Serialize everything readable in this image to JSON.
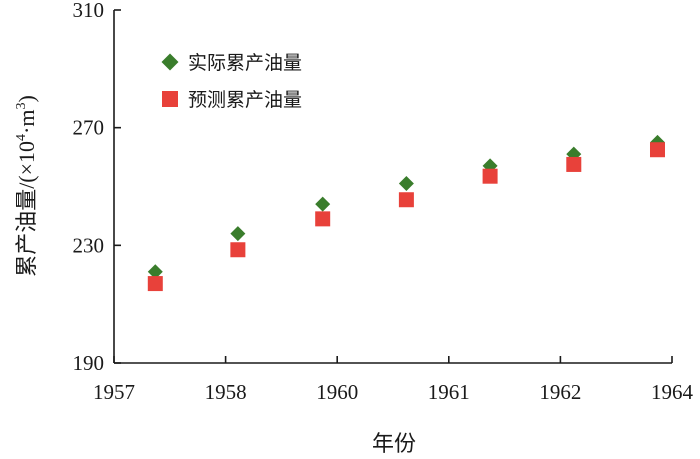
{
  "chart_data": {
    "type": "scatter",
    "xlabel": "年份",
    "ylabel_main": "累产油量/",
    "ylabel_unit": "(×10",
    "ylabel_exp": "4",
    "ylabel_unit2": "·m",
    "ylabel_exp2": "3",
    "ylabel_close": ")",
    "ylim": [
      190,
      310
    ],
    "yticks": [
      190,
      230,
      270,
      310
    ],
    "xtick_labels": [
      "1957",
      "1958",
      "1960",
      "1961",
      "1962",
      "1964"
    ],
    "legend_position": "top-left",
    "grid": false,
    "series": [
      {
        "name": "实际累产油量",
        "marker": "diamond",
        "color": "#3a7d2c",
        "points": [
          {
            "x": 0.37,
            "y": 221
          },
          {
            "x": 1.11,
            "y": 234
          },
          {
            "x": 1.87,
            "y": 244
          },
          {
            "x": 2.62,
            "y": 251
          },
          {
            "x": 3.37,
            "y": 257
          },
          {
            "x": 4.12,
            "y": 261
          },
          {
            "x": 4.87,
            "y": 265
          }
        ]
      },
      {
        "name": "预测累产油量",
        "marker": "square",
        "color": "#e8413a",
        "points": [
          {
            "x": 0.37,
            "y": 217
          },
          {
            "x": 1.11,
            "y": 228.5
          },
          {
            "x": 1.87,
            "y": 239
          },
          {
            "x": 2.62,
            "y": 245.5
          },
          {
            "x": 3.37,
            "y": 253.5
          },
          {
            "x": 4.12,
            "y": 257.5
          },
          {
            "x": 4.87,
            "y": 262.5
          }
        ]
      }
    ]
  }
}
